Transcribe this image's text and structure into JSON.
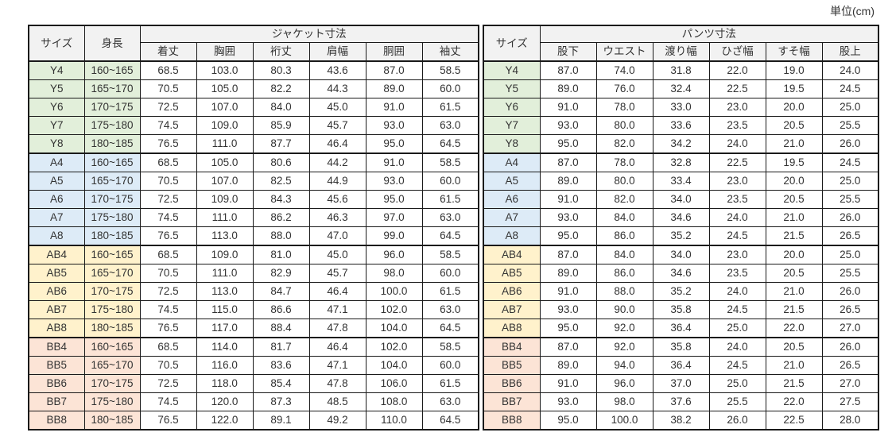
{
  "unit_label": "単位(cm)",
  "group_colors": {
    "y": "#e2efda",
    "a": "#ddebf7",
    "ab": "#fff2cc",
    "bb": "#fce4d6"
  },
  "jacket_table": {
    "size_header": "サイズ",
    "height_header": "身長",
    "section_header": "ジャケット寸法",
    "columns": [
      "着丈",
      "胸囲",
      "裄丈",
      "肩幅",
      "胴囲",
      "袖丈"
    ],
    "rows": [
      {
        "size": "Y4",
        "height": "160~165",
        "group": "y",
        "values": [
          "68.5",
          "103.0",
          "80.3",
          "43.6",
          "87.0",
          "58.5"
        ]
      },
      {
        "size": "Y5",
        "height": "165~170",
        "group": "y",
        "values": [
          "70.5",
          "105.0",
          "82.2",
          "44.3",
          "89.0",
          "60.0"
        ]
      },
      {
        "size": "Y6",
        "height": "170~175",
        "group": "y",
        "values": [
          "72.5",
          "107.0",
          "84.0",
          "45.0",
          "91.0",
          "61.5"
        ]
      },
      {
        "size": "Y7",
        "height": "175~180",
        "group": "y",
        "values": [
          "74.5",
          "109.0",
          "85.9",
          "45.7",
          "93.0",
          "63.0"
        ]
      },
      {
        "size": "Y8",
        "height": "180~185",
        "group": "y",
        "values": [
          "76.5",
          "111.0",
          "87.7",
          "46.4",
          "95.0",
          "64.5"
        ]
      },
      {
        "size": "A4",
        "height": "160~165",
        "group": "a",
        "values": [
          "68.5",
          "105.0",
          "80.6",
          "44.2",
          "91.0",
          "58.5"
        ]
      },
      {
        "size": "A5",
        "height": "165~170",
        "group": "a",
        "values": [
          "70.5",
          "107.0",
          "82.5",
          "44.9",
          "93.0",
          "60.0"
        ]
      },
      {
        "size": "A6",
        "height": "170~175",
        "group": "a",
        "values": [
          "72.5",
          "109.0",
          "84.3",
          "45.6",
          "95.0",
          "61.5"
        ]
      },
      {
        "size": "A7",
        "height": "175~180",
        "group": "a",
        "values": [
          "74.5",
          "111.0",
          "86.2",
          "46.3",
          "97.0",
          "63.0"
        ]
      },
      {
        "size": "A8",
        "height": "180~185",
        "group": "a",
        "values": [
          "76.5",
          "113.0",
          "88.0",
          "47.0",
          "99.0",
          "64.5"
        ]
      },
      {
        "size": "AB4",
        "height": "160~165",
        "group": "ab",
        "values": [
          "68.5",
          "109.0",
          "81.0",
          "45.0",
          "96.0",
          "58.5"
        ]
      },
      {
        "size": "AB5",
        "height": "165~170",
        "group": "ab",
        "values": [
          "70.5",
          "111.0",
          "82.9",
          "45.7",
          "98.0",
          "60.0"
        ]
      },
      {
        "size": "AB6",
        "height": "170~175",
        "group": "ab",
        "values": [
          "72.5",
          "113.0",
          "84.7",
          "46.4",
          "100.0",
          "61.5"
        ]
      },
      {
        "size": "AB7",
        "height": "175~180",
        "group": "ab",
        "values": [
          "74.5",
          "115.0",
          "86.6",
          "47.1",
          "102.0",
          "63.0"
        ]
      },
      {
        "size": "AB8",
        "height": "180~185",
        "group": "ab",
        "values": [
          "76.5",
          "117.0",
          "88.4",
          "47.8",
          "104.0",
          "64.5"
        ]
      },
      {
        "size": "BB4",
        "height": "160~165",
        "group": "bb",
        "values": [
          "68.5",
          "114.0",
          "81.7",
          "46.4",
          "102.0",
          "58.5"
        ]
      },
      {
        "size": "BB5",
        "height": "165~170",
        "group": "bb",
        "values": [
          "70.5",
          "116.0",
          "83.6",
          "47.1",
          "104.0",
          "60.0"
        ]
      },
      {
        "size": "BB6",
        "height": "170~175",
        "group": "bb",
        "values": [
          "72.5",
          "118.0",
          "85.4",
          "47.8",
          "106.0",
          "61.5"
        ]
      },
      {
        "size": "BB7",
        "height": "175~180",
        "group": "bb",
        "values": [
          "74.5",
          "120.0",
          "87.3",
          "48.5",
          "108.0",
          "63.0"
        ]
      },
      {
        "size": "BB8",
        "height": "180~185",
        "group": "bb",
        "values": [
          "76.5",
          "122.0",
          "89.1",
          "49.2",
          "110.0",
          "64.5"
        ]
      }
    ]
  },
  "pants_table": {
    "size_header": "サイズ",
    "section_header": "パンツ寸法",
    "columns": [
      "股下",
      "ウエスト",
      "渡り幅",
      "ひざ幅",
      "すそ幅",
      "股上"
    ],
    "rows": [
      {
        "size": "Y4",
        "group": "y",
        "values": [
          "87.0",
          "74.0",
          "31.8",
          "22.0",
          "19.0",
          "24.0"
        ]
      },
      {
        "size": "Y5",
        "group": "y",
        "values": [
          "89.0",
          "76.0",
          "32.4",
          "22.5",
          "19.5",
          "24.5"
        ]
      },
      {
        "size": "Y6",
        "group": "y",
        "values": [
          "91.0",
          "78.0",
          "33.0",
          "23.0",
          "20.0",
          "25.0"
        ]
      },
      {
        "size": "Y7",
        "group": "y",
        "values": [
          "93.0",
          "80.0",
          "33.6",
          "23.5",
          "20.5",
          "25.5"
        ]
      },
      {
        "size": "Y8",
        "group": "y",
        "values": [
          "95.0",
          "82.0",
          "34.2",
          "24.0",
          "21.0",
          "26.0"
        ]
      },
      {
        "size": "A4",
        "group": "a",
        "values": [
          "87.0",
          "78.0",
          "32.8",
          "22.5",
          "19.5",
          "24.5"
        ]
      },
      {
        "size": "A5",
        "group": "a",
        "values": [
          "89.0",
          "80.0",
          "33.4",
          "23.0",
          "20.0",
          "25.0"
        ]
      },
      {
        "size": "A6",
        "group": "a",
        "values": [
          "91.0",
          "82.0",
          "34.0",
          "23.5",
          "20.5",
          "25.5"
        ]
      },
      {
        "size": "A7",
        "group": "a",
        "values": [
          "93.0",
          "84.0",
          "34.6",
          "24.0",
          "21.0",
          "26.0"
        ]
      },
      {
        "size": "A8",
        "group": "a",
        "values": [
          "95.0",
          "86.0",
          "35.2",
          "24.5",
          "21.5",
          "26.5"
        ]
      },
      {
        "size": "AB4",
        "group": "ab",
        "values": [
          "87.0",
          "84.0",
          "34.0",
          "23.0",
          "20.0",
          "25.0"
        ]
      },
      {
        "size": "AB5",
        "group": "ab",
        "values": [
          "89.0",
          "86.0",
          "34.6",
          "23.5",
          "20.5",
          "25.5"
        ]
      },
      {
        "size": "AB6",
        "group": "ab",
        "values": [
          "91.0",
          "88.0",
          "35.2",
          "24.0",
          "21.0",
          "26.0"
        ]
      },
      {
        "size": "AB7",
        "group": "ab",
        "values": [
          "93.0",
          "90.0",
          "35.8",
          "24.5",
          "21.5",
          "26.5"
        ]
      },
      {
        "size": "AB8",
        "group": "ab",
        "values": [
          "95.0",
          "92.0",
          "36.4",
          "25.0",
          "22.0",
          "27.0"
        ]
      },
      {
        "size": "BB4",
        "group": "bb",
        "values": [
          "87.0",
          "92.0",
          "35.8",
          "24.0",
          "20.5",
          "26.0"
        ]
      },
      {
        "size": "BB5",
        "group": "bb",
        "values": [
          "89.0",
          "94.0",
          "36.4",
          "24.5",
          "21.0",
          "26.5"
        ]
      },
      {
        "size": "BB6",
        "group": "bb",
        "values": [
          "91.0",
          "96.0",
          "37.0",
          "25.0",
          "21.5",
          "27.0"
        ]
      },
      {
        "size": "BB7",
        "group": "bb",
        "values": [
          "93.0",
          "98.0",
          "37.6",
          "25.5",
          "22.0",
          "27.5"
        ]
      },
      {
        "size": "BB8",
        "group": "bb",
        "values": [
          "95.0",
          "100.0",
          "38.2",
          "26.0",
          "22.5",
          "28.0"
        ]
      }
    ]
  }
}
